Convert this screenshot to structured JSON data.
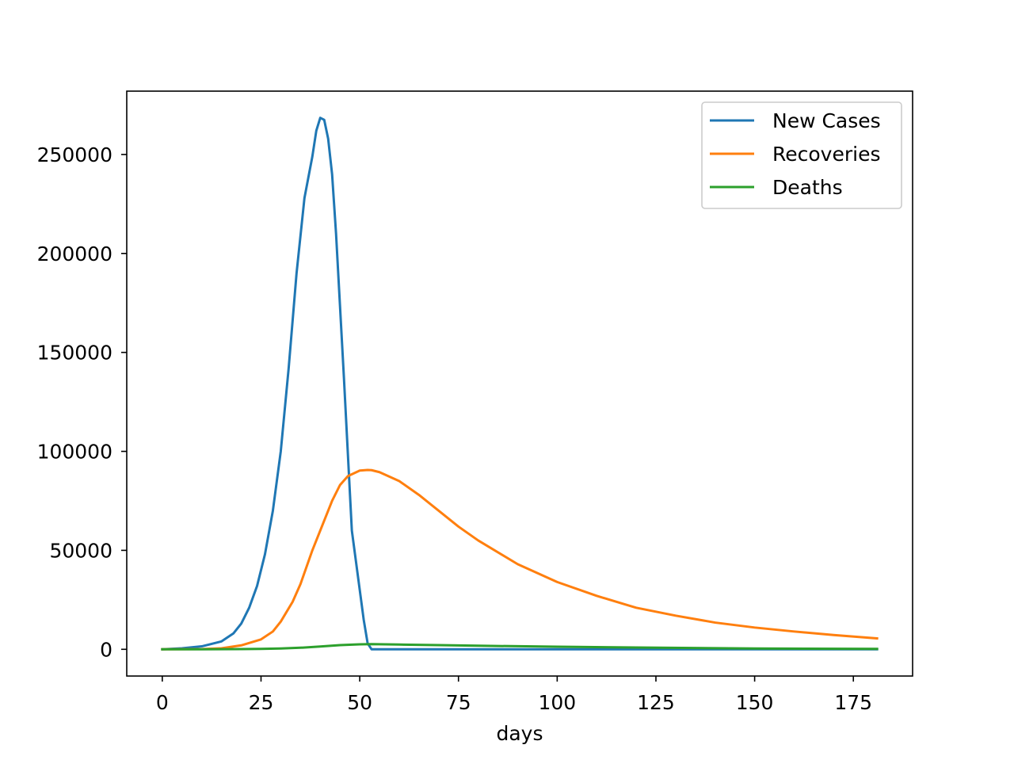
{
  "chart_data": {
    "type": "line",
    "title": "",
    "xlabel": "days",
    "ylabel": "",
    "xlim": [
      -9,
      190
    ],
    "ylim": [
      -13500,
      282000
    ],
    "x_ticks": [
      0,
      25,
      50,
      75,
      100,
      125,
      150,
      175
    ],
    "y_ticks": [
      0,
      50000,
      100000,
      150000,
      200000,
      250000
    ],
    "grid": false,
    "legend_position": "top-right",
    "series": [
      {
        "name": "New Cases",
        "color": "#1f77b4",
        "x": [
          0,
          5,
          10,
          15,
          18,
          20,
          22,
          24,
          26,
          28,
          30,
          32,
          34,
          36,
          38,
          39,
          40,
          41,
          42,
          43,
          44,
          46,
          48,
          50,
          51,
          52,
          53,
          60,
          80,
          100,
          120,
          150,
          181
        ],
        "y": [
          0,
          500,
          1500,
          4000,
          8000,
          13000,
          21000,
          32000,
          48000,
          70000,
          100000,
          142000,
          190000,
          228000,
          249000,
          262000,
          268500,
          267500,
          258000,
          240000,
          210000,
          137000,
          60000,
          30000,
          15000,
          3000,
          0,
          0,
          0,
          0,
          0,
          0,
          0
        ]
      },
      {
        "name": "Recoveries",
        "color": "#ff7f0e",
        "x": [
          0,
          10,
          15,
          20,
          25,
          28,
          30,
          33,
          35,
          38,
          40,
          43,
          45,
          47,
          50,
          52,
          53,
          55,
          60,
          65,
          70,
          75,
          80,
          90,
          100,
          110,
          120,
          130,
          140,
          150,
          160,
          170,
          181
        ],
        "y": [
          0,
          100,
          500,
          2000,
          5000,
          9000,
          14000,
          24000,
          33000,
          50000,
          60000,
          75000,
          83000,
          87500,
          90300,
          90600,
          90500,
          89500,
          85000,
          78000,
          70000,
          62000,
          55000,
          43000,
          34000,
          27000,
          21000,
          17000,
          13500,
          11000,
          9000,
          7200,
          5500
        ]
      },
      {
        "name": "Deaths",
        "color": "#2ca02c",
        "x": [
          0,
          10,
          20,
          25,
          30,
          35,
          40,
          45,
          50,
          53,
          60,
          70,
          80,
          100,
          120,
          150,
          181
        ],
        "y": [
          0,
          20,
          100,
          200,
          400,
          800,
          1400,
          2100,
          2500,
          2600,
          2400,
          2100,
          1800,
          1300,
          900,
          400,
          200
        ]
      }
    ]
  }
}
